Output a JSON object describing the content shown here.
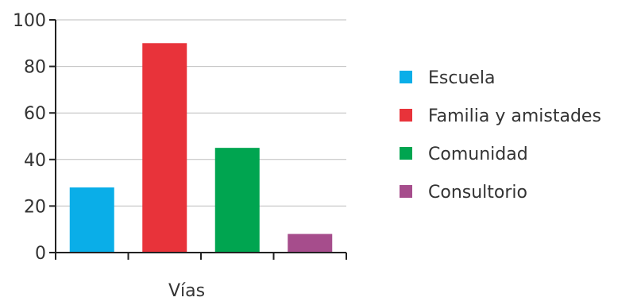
{
  "chart_data": {
    "type": "bar",
    "categories": [
      "Escuela",
      "Familia y amistades",
      "Comunidad",
      "Consultorio"
    ],
    "values": [
      28,
      90,
      45,
      8
    ],
    "colors": [
      "#0aaee8",
      "#e8333a",
      "#00a550",
      "#a64d8c"
    ],
    "title": "",
    "xlabel": "Vías",
    "ylabel": "",
    "ylim": [
      0,
      100
    ],
    "yticks": [
      "0",
      "20",
      "40",
      "60",
      "80",
      "100"
    ],
    "grid": true,
    "legend": {
      "placement": "right",
      "entries": [
        "Escuela",
        "Familia y amistades",
        "Comunidad",
        "Consultorio"
      ]
    }
  }
}
